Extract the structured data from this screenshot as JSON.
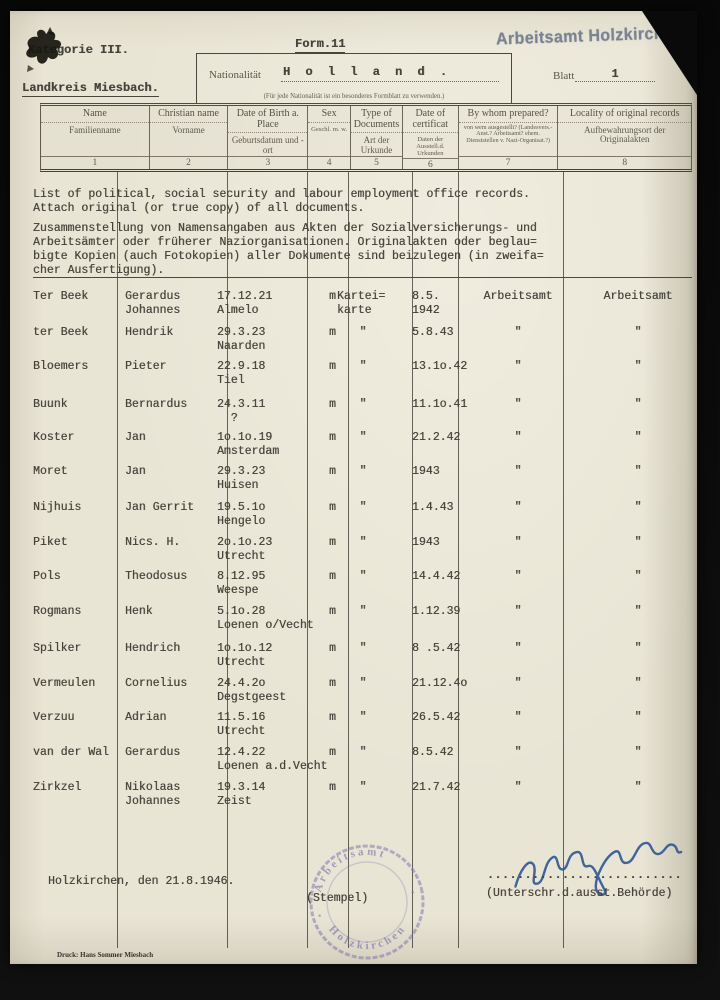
{
  "colors": {
    "paper": "#e9e5d5",
    "typewriter_ink": "#45423a",
    "office_stamp_blue": "#6b7689",
    "round_stamp_violet": "#7b74b8",
    "signature_ink": "#2f5597"
  },
  "header": {
    "category": "Kategorie III.",
    "district": "Landkreis Miesbach.",
    "form_no": "Form.11",
    "office_stamp": "Arbeitsamt Holzkirchen",
    "sheet_label": "Blatt",
    "sheet_value": "1",
    "nationality_label": "Nationalität",
    "nationality_value": "H o l l a n d .",
    "nationality_note": "(Für jede Nationalität ist ein besonderes Formblatt zu verwenden.)"
  },
  "table_columns": [
    {
      "en": "Name",
      "de": "Familienname",
      "num": "1"
    },
    {
      "en": "Christian name",
      "de": "Vorname",
      "num": "2"
    },
    {
      "en": "Date of Birth a. Place",
      "de": "Geburtsdatum und -ort",
      "num": "3"
    },
    {
      "en": "Sex",
      "de": "Geschl. m. w.",
      "num": "4"
    },
    {
      "en": "Type of Documents",
      "de": "Art der Urkunde",
      "num": "5"
    },
    {
      "en": "Date of certificat",
      "de": "Daten der Ausstell.d. Urkunden",
      "num": "6"
    },
    {
      "en": "By whom prepared?",
      "de": "von wem ausgestellt? (Landesvers.-Anst.? Arbeitsamt? ehem. Dienststellen v. Nazi-Organisat.?)",
      "num": "7"
    },
    {
      "en": "Locality of original records",
      "de": "Aufbewahrungsort der Originalakten",
      "num": "8"
    }
  ],
  "instructions": {
    "en": [
      "List of political, social security and labour employment office records.",
      "Attach original (or true copy) of all documents."
    ],
    "de": [
      "Zusammenstellung von Namensangaben aus Akten der Sozialversicherungs- und",
      "Arbeitsämter oder früherer Naziorganisationen. Originalakten oder beglau=",
      "bigte Kopien (auch Fotokopien) aller Dokumente sind beizulegen (in zweifa=",
      "cher Ausfertigung)."
    ]
  },
  "records": [
    {
      "name": "Ter Beek",
      "first": [
        "Gerardus",
        "Johannes"
      ],
      "birth": [
        "17.12.21",
        "Almelo"
      ],
      "sex": "m",
      "doc": [
        "Kartei=",
        "karte"
      ],
      "date": [
        "8.5.",
        "1942"
      ],
      "by": [
        "Arbeitsamt"
      ],
      "loc": [
        "Arbeitsamt"
      ]
    },
    {
      "name": "ter Beek",
      "first": [
        "Hendrik"
      ],
      "birth": [
        "29.3.23",
        "Naarden"
      ],
      "sex": "m",
      "doc": [
        "\""
      ],
      "date": [
        "5.8.43"
      ],
      "by": [
        "\""
      ],
      "loc": [
        "\""
      ]
    },
    {
      "name": "Bloemers",
      "first": [
        "Pieter"
      ],
      "birth": [
        "22.9.18",
        "Tiel"
      ],
      "sex": "m",
      "doc": [
        "\""
      ],
      "date": [
        "13.1o.42"
      ],
      "by": [
        "\""
      ],
      "loc": [
        "\""
      ]
    },
    {
      "name": "Buunk",
      "first": [
        "Bernardus"
      ],
      "birth": [
        "24.3.11",
        "  ?"
      ],
      "sex": "m",
      "doc": [
        "\""
      ],
      "date": [
        "11.1o.41"
      ],
      "by": [
        "\""
      ],
      "loc": [
        "\""
      ]
    },
    {
      "name": "Koster",
      "first": [
        "Jan"
      ],
      "birth": [
        "1o.1o.19",
        "Amsterdam"
      ],
      "sex": "m",
      "doc": [
        "\""
      ],
      "date": [
        "21.2.42"
      ],
      "by": [
        "\""
      ],
      "loc": [
        "\""
      ]
    },
    {
      "name": "Moret",
      "first": [
        "Jan"
      ],
      "birth": [
        "29.3.23",
        "Huisen"
      ],
      "sex": "m",
      "doc": [
        "\""
      ],
      "date": [
        "1943"
      ],
      "by": [
        "\""
      ],
      "loc": [
        "\""
      ]
    },
    {
      "name": "Nijhuis",
      "first": [
        "Jan Gerrit"
      ],
      "birth": [
        "19.5.1o",
        "Hengelo"
      ],
      "sex": "m",
      "doc": [
        "\""
      ],
      "date": [
        "1.4.43"
      ],
      "by": [
        "\""
      ],
      "loc": [
        "\""
      ]
    },
    {
      "name": "Piket",
      "first": [
        "Nics. H."
      ],
      "birth": [
        "2o.1o.23",
        "Utrecht"
      ],
      "sex": "m",
      "doc": [
        "\""
      ],
      "date": [
        "1943"
      ],
      "by": [
        "\""
      ],
      "loc": [
        "\""
      ]
    },
    {
      "name": "Pols",
      "first": [
        "Theodosus"
      ],
      "birth": [
        "8.12.95",
        "Weespe"
      ],
      "sex": "m",
      "doc": [
        "\""
      ],
      "date": [
        "14.4.42"
      ],
      "by": [
        "\""
      ],
      "loc": [
        "\""
      ]
    },
    {
      "name": "Rogmans",
      "first": [
        "Henk"
      ],
      "birth": [
        "5.1o.28",
        "Loenen o/Vecht"
      ],
      "sex": "m",
      "doc": [
        "\""
      ],
      "date": [
        "1.12.39"
      ],
      "by": [
        "\""
      ],
      "loc": [
        "\""
      ]
    },
    {
      "name": "Spilker",
      "first": [
        "Hendrich"
      ],
      "birth": [
        "1o.1o.12",
        "Utrecht"
      ],
      "sex": "m",
      "doc": [
        "\""
      ],
      "date": [
        "8 .5.42"
      ],
      "by": [
        "\""
      ],
      "loc": [
        "\""
      ]
    },
    {
      "name": "Vermeulen",
      "first": [
        "Cornelius"
      ],
      "birth": [
        "24.4.2o",
        "Degstgeest"
      ],
      "sex": "m",
      "doc": [
        "\""
      ],
      "date": [
        "21.12.4o"
      ],
      "by": [
        "\""
      ],
      "loc": [
        "\""
      ]
    },
    {
      "name": "Verzuu",
      "first": [
        "Adrian"
      ],
      "birth": [
        "11.5.16",
        "Utrecht"
      ],
      "sex": "m",
      "doc": [
        "\""
      ],
      "date": [
        "26.5.42"
      ],
      "by": [
        "\""
      ],
      "loc": [
        "\""
      ]
    },
    {
      "name": "van der Wal",
      "first": [
        "Gerardus"
      ],
      "birth": [
        "12.4.22",
        "Loenen a.d.Vecht"
      ],
      "sex": "m",
      "doc": [
        "\""
      ],
      "date": [
        "8.5.42"
      ],
      "by": [
        "\""
      ],
      "loc": [
        "\""
      ]
    },
    {
      "name": "Zirkzel",
      "first": [
        "Nikolaas",
        "Johannes"
      ],
      "birth": [
        "19.3.14",
        "Zeist"
      ],
      "sex": "m",
      "doc": [
        "\""
      ],
      "date": [
        "21.7.42"
      ],
      "by": [
        "\""
      ],
      "loc": [
        "\""
      ]
    }
  ],
  "footer": {
    "place_date": "Holzkirchen, den 21.8.1946.",
    "stamp_caption": "(Stempel)",
    "round_stamp_word_top": "Arbeitsamt",
    "round_stamp_word_bottom": "Holzkirchen",
    "signature_dots": "..........................",
    "signature_caption": "(Unterschr.d.ausst.Behörde)",
    "printer": "Druck: Hans Sommer Miesbach"
  }
}
